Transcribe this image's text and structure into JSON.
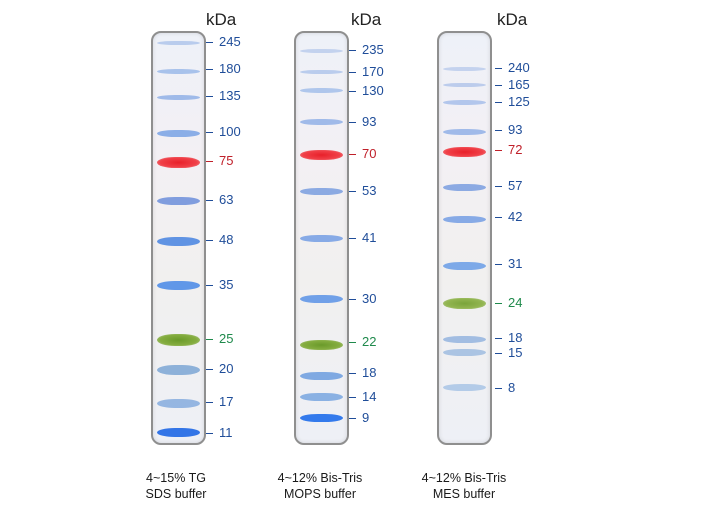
{
  "unit_label": "kDa",
  "colors": {
    "blue_text": "#1f4d99",
    "red_text": "#c0202a",
    "green_text": "#1f8a4c"
  },
  "ladders": [
    {
      "caption_line1": "4~15% TG",
      "caption_line2": "SDS buffer",
      "markers": [
        {
          "kda": "245",
          "color": "blue"
        },
        {
          "kda": "180",
          "color": "blue"
        },
        {
          "kda": "135",
          "color": "blue"
        },
        {
          "kda": "100",
          "color": "blue"
        },
        {
          "kda": "75",
          "color": "red"
        },
        {
          "kda": "63",
          "color": "blue"
        },
        {
          "kda": "48",
          "color": "blue"
        },
        {
          "kda": "35",
          "color": "blue"
        },
        {
          "kda": "25",
          "color": "green"
        },
        {
          "kda": "20",
          "color": "blue"
        },
        {
          "kda": "17",
          "color": "blue"
        },
        {
          "kda": "11",
          "color": "blue"
        }
      ]
    },
    {
      "caption_line1": "4~12% Bis-Tris",
      "caption_line2": "MOPS buffer",
      "markers": [
        {
          "kda": "235",
          "color": "blue"
        },
        {
          "kda": "170",
          "color": "blue"
        },
        {
          "kda": "130",
          "color": "blue"
        },
        {
          "kda": "93",
          "color": "blue"
        },
        {
          "kda": "70",
          "color": "red"
        },
        {
          "kda": "53",
          "color": "blue"
        },
        {
          "kda": "41",
          "color": "blue"
        },
        {
          "kda": "30",
          "color": "blue"
        },
        {
          "kda": "22",
          "color": "green"
        },
        {
          "kda": "18",
          "color": "blue"
        },
        {
          "kda": "14",
          "color": "blue"
        },
        {
          "kda": "9",
          "color": "blue"
        }
      ]
    },
    {
      "caption_line1": "4~12% Bis-Tris",
      "caption_line2": "MES buffer",
      "markers": [
        {
          "kda": "240",
          "color": "blue"
        },
        {
          "kda": "165",
          "color": "blue"
        },
        {
          "kda": "125",
          "color": "blue"
        },
        {
          "kda": "93",
          "color": "blue"
        },
        {
          "kda": "72",
          "color": "red"
        },
        {
          "kda": "57",
          "color": "blue"
        },
        {
          "kda": "42",
          "color": "blue"
        },
        {
          "kda": "31",
          "color": "blue"
        },
        {
          "kda": "24",
          "color": "green"
        },
        {
          "kda": "18",
          "color": "blue"
        },
        {
          "kda": "15",
          "color": "blue"
        },
        {
          "kda": "8",
          "color": "blue"
        }
      ]
    }
  ]
}
